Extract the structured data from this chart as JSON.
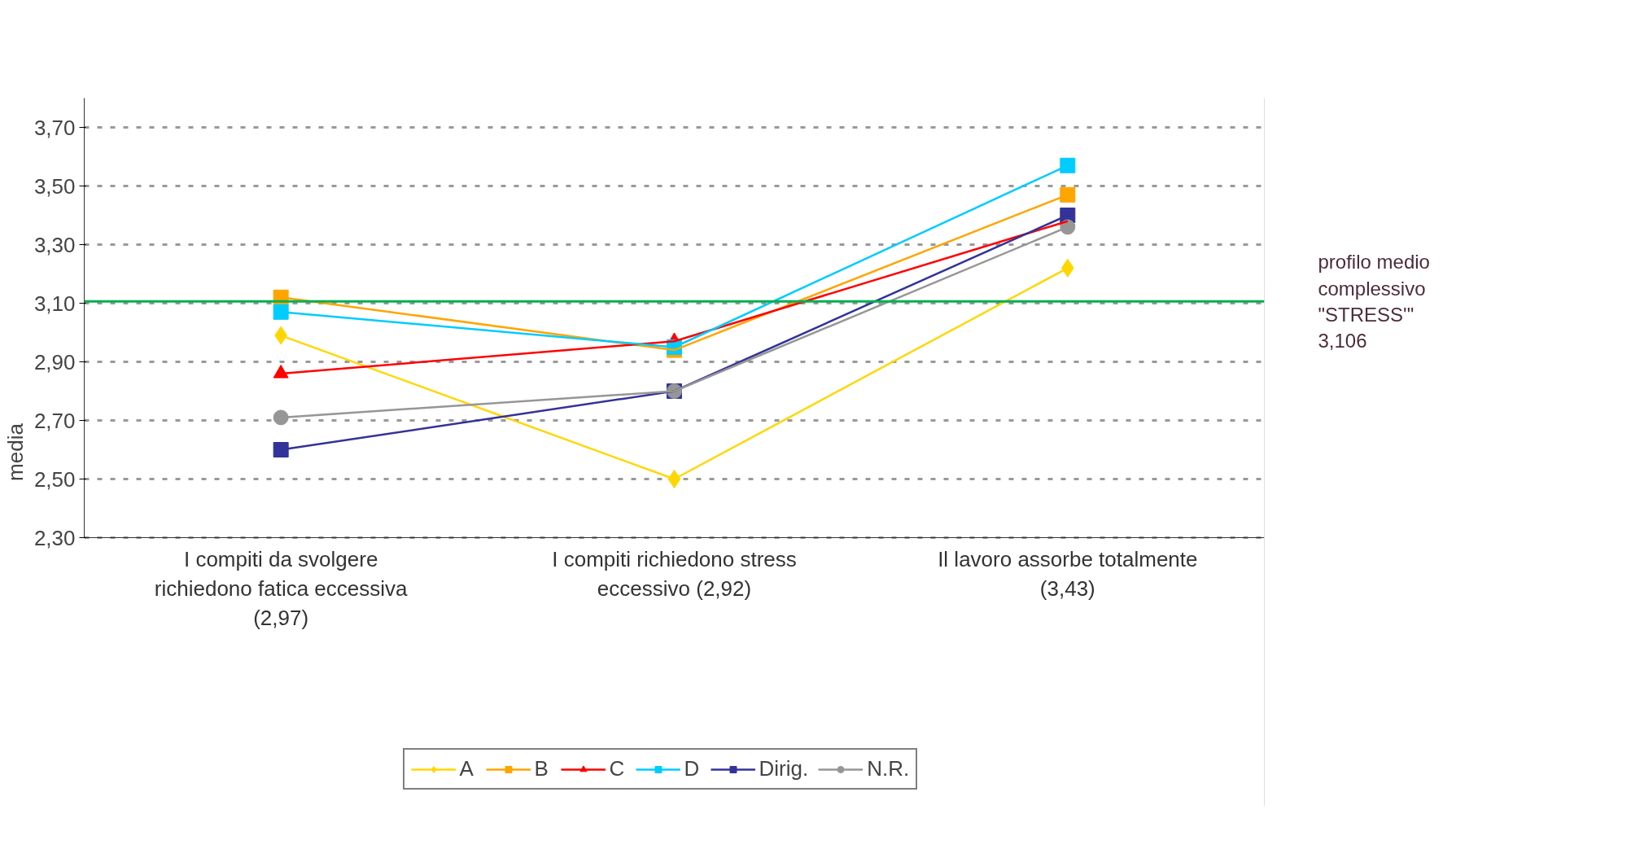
{
  "chart_data": {
    "type": "line",
    "ylabel": "media",
    "categories": [
      "I compiti da svolgere\nrichiedono fatica eccessiva\n(2,97)",
      "I compiti richiedono stress\neccessivo (2,92)",
      "Il lavoro assorbe totalmente\n(3,43)"
    ],
    "series": [
      {
        "name": "A",
        "color": "#ffd700",
        "marker": "diamond",
        "values": [
          2.99,
          2.5,
          3.22
        ]
      },
      {
        "name": "B",
        "color": "#ffa500",
        "marker": "square",
        "values": [
          3.12,
          2.94,
          3.47
        ]
      },
      {
        "name": "C",
        "color": "#ff0000",
        "marker": "triangle",
        "values": [
          2.86,
          2.97,
          3.38
        ]
      },
      {
        "name": "D",
        "color": "#00ccff",
        "marker": "square",
        "values": [
          3.07,
          2.95,
          3.57
        ]
      },
      {
        "name": "Dirig.",
        "color": "#333399",
        "marker": "square",
        "values": [
          2.6,
          2.8,
          3.4
        ]
      },
      {
        "name": "N.R.",
        "color": "#969696",
        "marker": "circle",
        "values": [
          2.71,
          2.8,
          3.36
        ]
      }
    ],
    "ylim": [
      2.3,
      3.8
    ],
    "yticks": [
      {
        "value": 2.3,
        "label": "2,30"
      },
      {
        "value": 2.5,
        "label": "2,50"
      },
      {
        "value": 2.7,
        "label": "2,70"
      },
      {
        "value": 2.9,
        "label": "2,90"
      },
      {
        "value": 3.1,
        "label": "3,10"
      },
      {
        "value": 3.3,
        "label": "3,30"
      },
      {
        "value": 3.5,
        "label": "3,50"
      },
      {
        "value": 3.7,
        "label": "3,70"
      }
    ],
    "grid": "y",
    "legend": "bottom",
    "line_style": "solid",
    "ref_lines": [
      {
        "axis": "y",
        "value": 3.106,
        "label": "profilo medio\ncomplessivo\n\"STRESS'\"\n3,106",
        "color": "#00b050"
      }
    ]
  }
}
